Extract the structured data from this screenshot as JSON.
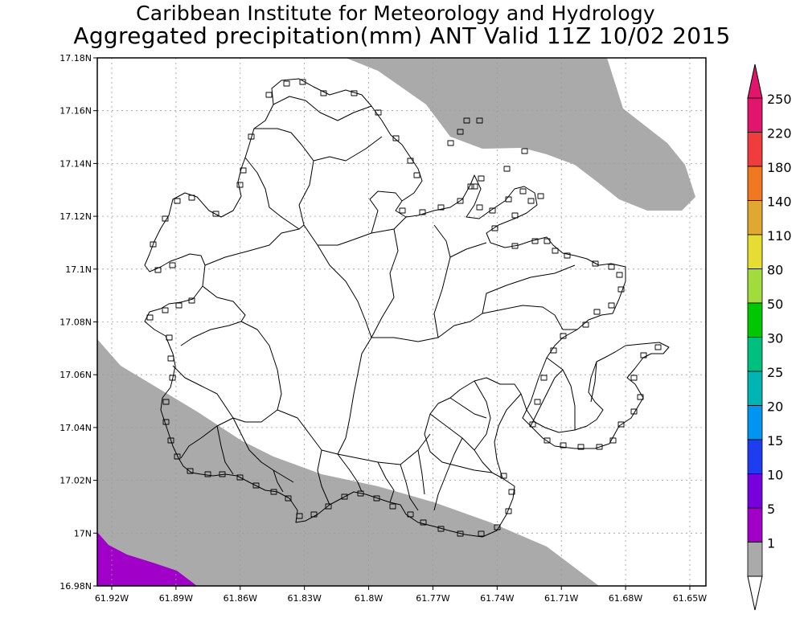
{
  "title_line1": "Caribbean Institute for Meteorology and Hydrology",
  "title_line2": "Aggregated precipitation(mm) ANT Valid 11Z 10/02 2015",
  "axes": {
    "y_ticks": [
      "17.18N",
      "17.16N",
      "17.14N",
      "17.12N",
      "17.1N",
      "17.08N",
      "17.06N",
      "17.04N",
      "17.02N",
      "17N",
      "16.98N"
    ],
    "x_ticks": [
      "61.92W",
      "61.89W",
      "61.86W",
      "61.83W",
      "61.8W",
      "61.77W",
      "61.74W",
      "61.71W",
      "61.68W",
      "61.65W"
    ],
    "lat_range": [
      16.98,
      17.18
    ],
    "lon_range": [
      -61.93,
      -61.645
    ]
  },
  "legend": {
    "labels": [
      "250",
      "220",
      "180",
      "140",
      "110",
      "80",
      "50",
      "30",
      "25",
      "20",
      "15",
      "10",
      "5",
      "1"
    ],
    "colors": [
      "#e0156b",
      "#f03c3c",
      "#f07820",
      "#e0a830",
      "#e6dc32",
      "#a0dc3c",
      "#00c800",
      "#00c080",
      "#00b4b4",
      "#0096f0",
      "#1e3cf0",
      "#7800dc",
      "#a000c8",
      "#aaaaaa"
    ],
    "top_arrow_color": "#e0156b",
    "bottom_arrow_color": "#ffffff"
  },
  "fields": {
    "shade_1_5_color": "#aaaaaa",
    "shade_5_10_color": "#a000c8",
    "background_color": "#ffffff"
  }
}
